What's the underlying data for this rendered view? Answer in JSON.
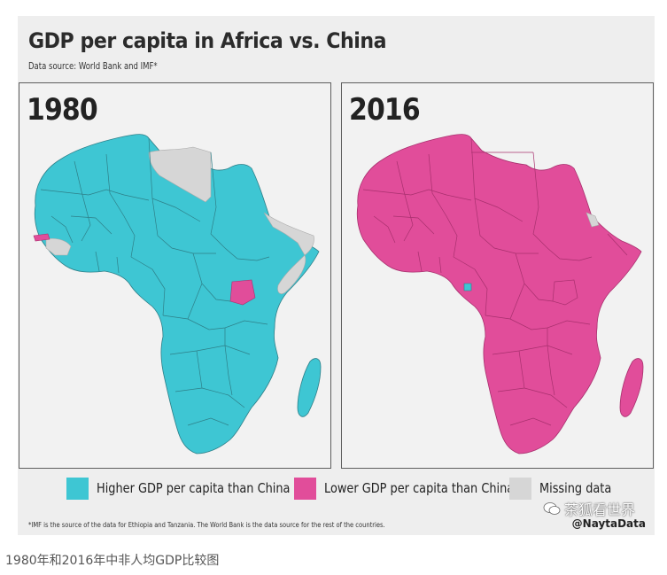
{
  "title": "GDP per capita in Africa vs. China",
  "subtitle": "Data source: World Bank and IMF*",
  "panels": [
    {
      "year": "1980"
    },
    {
      "year": "2016"
    }
  ],
  "colors": {
    "higher": "#3ec6d3",
    "lower": "#e14d9a",
    "missing": "#d6d6d6",
    "border": "#2e7f88",
    "border_lower": "#a8306e"
  },
  "legend": {
    "higher": "Higher GDP per capita than China",
    "lower": "Lower GDP per capita than China",
    "missing": "Missing data"
  },
  "footnote": "*IMF is the source of the data for Ethiopia and Tanzania. The World Bank is the data source for the rest of the countries.",
  "credit": "@NaytaData",
  "watermark": "茶狐看世界",
  "caption": "1980年和2016年中非人均GDP比较图"
}
